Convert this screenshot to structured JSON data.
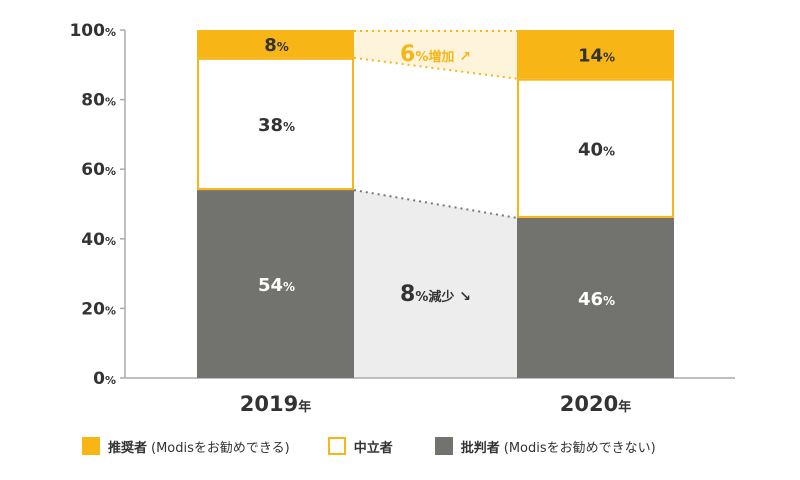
{
  "chart_data": {
    "type": "bar",
    "stacked": true,
    "unit": "%",
    "ylim": [
      0,
      100
    ],
    "yticks": [
      0,
      20,
      40,
      60,
      80,
      100
    ],
    "categories": [
      {
        "year": "2019",
        "suffix": "年"
      },
      {
        "year": "2020",
        "suffix": "年"
      }
    ],
    "series": [
      {
        "key": "critics",
        "name": "批判者",
        "note": "(Modisをお勧めできない)",
        "values": [
          54,
          46
        ]
      },
      {
        "key": "passives",
        "name": "中立者",
        "note": "",
        "values": [
          38,
          40
        ]
      },
      {
        "key": "promoters",
        "name": "推奨者",
        "note": "(Modisをお勧めできる)",
        "values": [
          8,
          14
        ]
      }
    ],
    "legend_order": [
      "promoters",
      "passives",
      "critics"
    ],
    "annotations": [
      {
        "key": "promoters",
        "value": "6",
        "unit": "%",
        "text": "増加",
        "arrow": "↗"
      },
      {
        "key": "critics",
        "value": "8",
        "unit": "%",
        "text": "減少",
        "arrow": "↘"
      }
    ]
  },
  "colors": {
    "promoters": "#F8B516",
    "passives_fill": "#FFFFFF",
    "passives_border": "#F8B516",
    "critics": "#72726E",
    "promoter_band": "#FEF4DC",
    "critic_band": "#EDEDED",
    "axis": "#AAAAAA",
    "text_dark": "#333333",
    "text_light": "#FFFFFF",
    "accent_text": "#F8B516"
  }
}
